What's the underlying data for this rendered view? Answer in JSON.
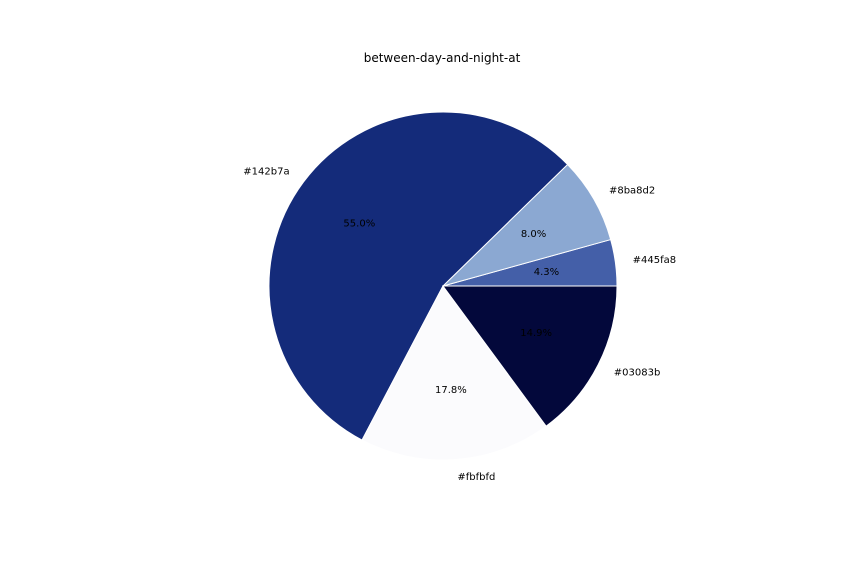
{
  "chart_data": {
    "type": "pie",
    "title": "between-day-and-night-at",
    "slices": [
      {
        "label": "#445fa8",
        "value": 4.3,
        "pct_label": "4.3%",
        "color": "#445fa8",
        "pct_color": "#000000"
      },
      {
        "label": "#8ba8d2",
        "value": 8.0,
        "pct_label": "8.0%",
        "color": "#8ba8d2",
        "pct_color": "#000000"
      },
      {
        "label": "#142b7a",
        "value": 55.0,
        "pct_label": "55.0%",
        "color": "#142b7a",
        "pct_color": "#000000"
      },
      {
        "label": "#fbfbfd",
        "value": 17.8,
        "pct_label": "17.8%",
        "color": "#fbfbfd",
        "pct_color": "#000000"
      },
      {
        "label": "#03083b",
        "value": 14.9,
        "pct_label": "14.9%",
        "color": "#03083b",
        "pct_color": "#000000"
      }
    ],
    "start_angle_deg": 0,
    "direction": "counterclockwise",
    "legend": "none"
  }
}
